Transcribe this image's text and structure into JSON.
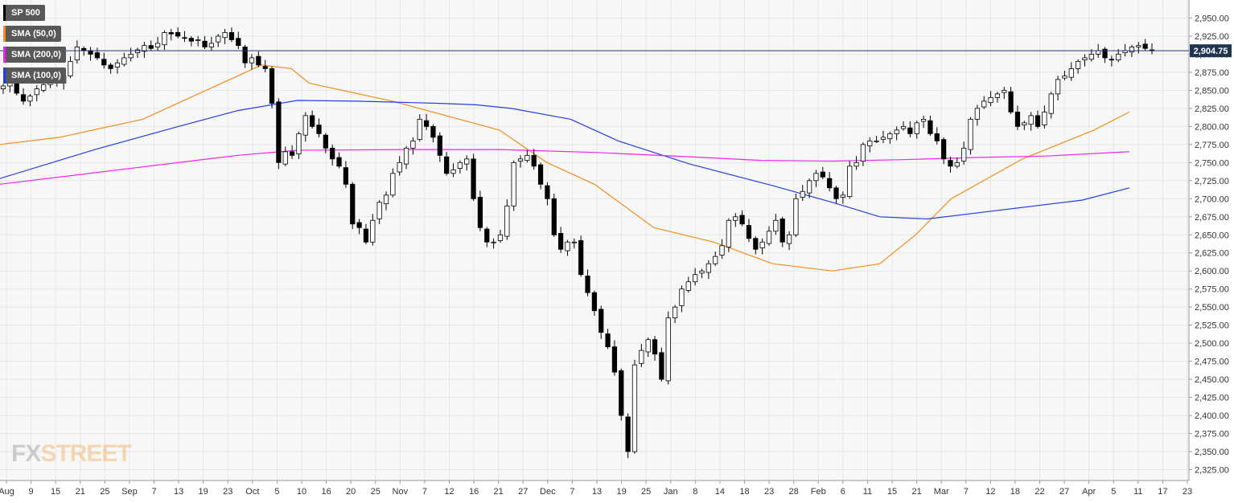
{
  "legend": [
    {
      "label": "SP 500",
      "color": "#000000"
    },
    {
      "label": "SMA (50,0)",
      "color": "#f28c1e"
    },
    {
      "label": "SMA (200,0)",
      "color": "#ee22ee"
    },
    {
      "label": "SMA (100,0)",
      "color": "#2040e0"
    }
  ],
  "watermark": {
    "fx": "FX",
    "street": "STREET"
  },
  "chart_data": {
    "type": "candlestick",
    "title": "SP 500",
    "ylim": [
      2310,
      2975
    ],
    "y_ticks": [
      2325,
      2350,
      2375,
      2400,
      2425,
      2450,
      2475,
      2500,
      2525,
      2550,
      2575,
      2600,
      2625,
      2650,
      2675,
      2700,
      2725,
      2750,
      2775,
      2800,
      2825,
      2850,
      2875,
      2900,
      2925,
      2950
    ],
    "x_ticks": [
      "Aug",
      "9",
      "15",
      "21",
      "25",
      "Sep",
      "7",
      "13",
      "19",
      "23",
      "Oct",
      "5",
      "10",
      "16",
      "20",
      "25",
      "Nov",
      "7",
      "12",
      "16",
      "21",
      "27",
      "Dec",
      "7",
      "13",
      "19",
      "25",
      "Jan",
      "8",
      "14",
      "18",
      "23",
      "28",
      "Feb",
      "6",
      "11",
      "15",
      "21",
      "Mar",
      "7",
      "12",
      "18",
      "22",
      "27",
      "Apr",
      "5",
      "11",
      "17",
      "23"
    ],
    "current_price": {
      "label": "2,904.75",
      "value": 2904.75
    },
    "closes": [
      2856,
      2862,
      2846,
      2835,
      2842,
      2852,
      2858,
      2860,
      2862,
      2870,
      2890,
      2910,
      2905,
      2900,
      2895,
      2885,
      2880,
      2888,
      2895,
      2900,
      2906,
      2912,
      2908,
      2915,
      2930,
      2928,
      2925,
      2922,
      2918,
      2920,
      2910,
      2915,
      2925,
      2930,
      2920,
      2912,
      2888,
      2895,
      2885,
      2880,
      2832,
      2750,
      2765,
      2760,
      2790,
      2815,
      2800,
      2790,
      2770,
      2755,
      2745,
      2720,
      2665,
      2660,
      2640,
      2670,
      2695,
      2705,
      2735,
      2750,
      2770,
      2780,
      2810,
      2800,
      2785,
      2760,
      2735,
      2740,
      2750,
      2755,
      2700,
      2660,
      2640,
      2640,
      2650,
      2690,
      2750,
      2755,
      2760,
      2745,
      2720,
      2700,
      2650,
      2630,
      2640,
      2640,
      2595,
      2570,
      2545,
      2515,
      2495,
      2460,
      2400,
      2350,
      2470,
      2490,
      2505,
      2485,
      2450,
      2535,
      2550,
      2575,
      2585,
      2595,
      2600,
      2610,
      2620,
      2635,
      2670,
      2675,
      2665,
      2645,
      2630,
      2640,
      2655,
      2670,
      2640,
      2650,
      2700,
      2710,
      2725,
      2735,
      2730,
      2715,
      2700,
      2705,
      2745,
      2750,
      2775,
      2780,
      2780,
      2785,
      2790,
      2795,
      2800,
      2790,
      2805,
      2810,
      2790,
      2780,
      2755,
      2745,
      2750,
      2770,
      2810,
      2825,
      2835,
      2840,
      2845,
      2850,
      2820,
      2800,
      2805,
      2815,
      2800,
      2820,
      2845,
      2865,
      2870,
      2880,
      2890,
      2895,
      2900,
      2905,
      2895,
      2892,
      2900,
      2905,
      2910,
      2912,
      2908,
      2904.75
    ],
    "series": [
      {
        "name": "SMA (50,0)",
        "color": "#f28c1e",
        "points": [
          [
            0,
            2775
          ],
          [
            0.05,
            2785
          ],
          [
            0.12,
            2810
          ],
          [
            0.18,
            2855
          ],
          [
            0.22,
            2885
          ],
          [
            0.245,
            2880
          ],
          [
            0.26,
            2860
          ],
          [
            0.33,
            2835
          ],
          [
            0.42,
            2795
          ],
          [
            0.46,
            2750
          ],
          [
            0.5,
            2720
          ],
          [
            0.55,
            2660
          ],
          [
            0.6,
            2640
          ],
          [
            0.65,
            2610
          ],
          [
            0.7,
            2600
          ],
          [
            0.74,
            2610
          ],
          [
            0.77,
            2650
          ],
          [
            0.8,
            2700
          ],
          [
            0.86,
            2755
          ],
          [
            0.92,
            2795
          ],
          [
            0.95,
            2820
          ]
        ]
      },
      {
        "name": "SMA (100,0)",
        "color": "#2040e0",
        "points": [
          [
            0,
            2728
          ],
          [
            0.08,
            2768
          ],
          [
            0.15,
            2800
          ],
          [
            0.2,
            2822
          ],
          [
            0.25,
            2836
          ],
          [
            0.3,
            2835
          ],
          [
            0.37,
            2832
          ],
          [
            0.4,
            2830
          ],
          [
            0.43,
            2825
          ],
          [
            0.48,
            2810
          ],
          [
            0.52,
            2780
          ],
          [
            0.58,
            2748
          ],
          [
            0.65,
            2718
          ],
          [
            0.7,
            2695
          ],
          [
            0.74,
            2675
          ],
          [
            0.78,
            2672
          ],
          [
            0.82,
            2680
          ],
          [
            0.87,
            2690
          ],
          [
            0.91,
            2698
          ],
          [
            0.95,
            2715
          ]
        ]
      },
      {
        "name": "SMA (200,0)",
        "color": "#ee22ee",
        "points": [
          [
            0,
            2720
          ],
          [
            0.1,
            2740
          ],
          [
            0.2,
            2760
          ],
          [
            0.25,
            2767
          ],
          [
            0.35,
            2768
          ],
          [
            0.42,
            2768
          ],
          [
            0.5,
            2764
          ],
          [
            0.58,
            2758
          ],
          [
            0.64,
            2753
          ],
          [
            0.7,
            2752
          ],
          [
            0.76,
            2754
          ],
          [
            0.82,
            2757
          ],
          [
            0.88,
            2759
          ],
          [
            0.95,
            2765
          ]
        ]
      }
    ]
  }
}
